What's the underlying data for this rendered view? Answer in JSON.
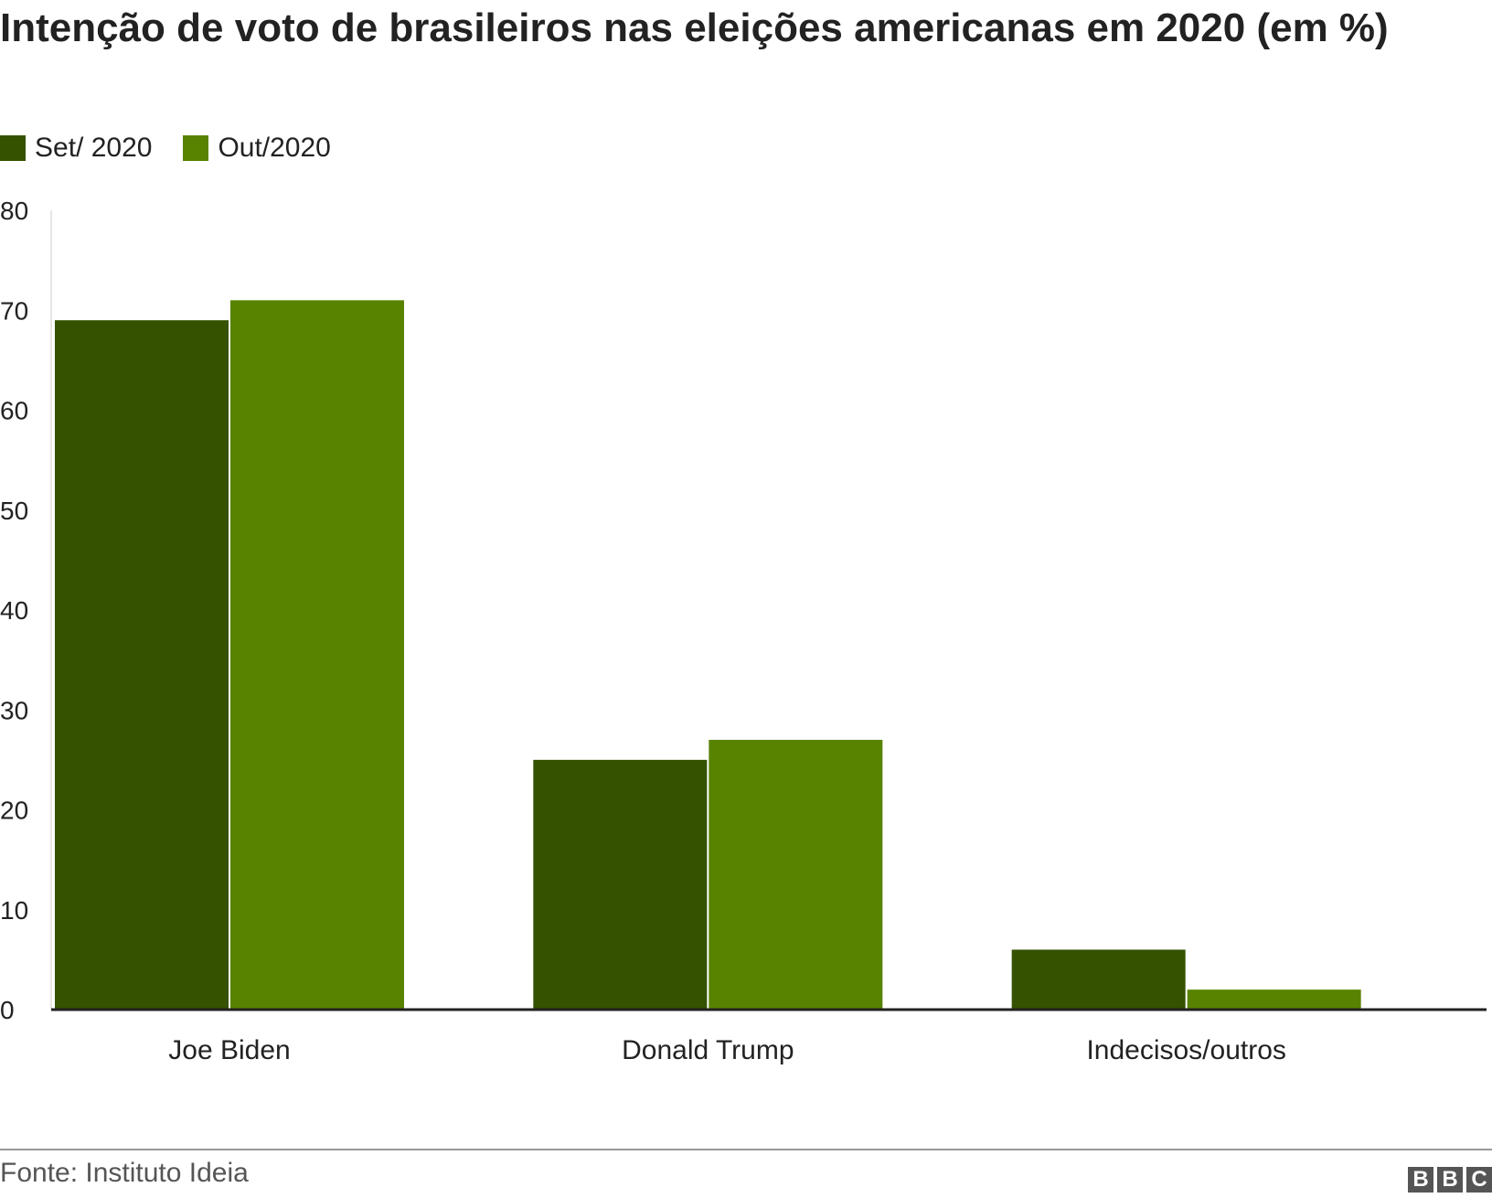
{
  "chart_data": {
    "type": "bar",
    "title": "Intenção de voto de brasileiros nas eleições americanas em 2020 (em %)",
    "categories": [
      "Joe Biden",
      "Donald Trump",
      "Indecisos/outros"
    ],
    "series": [
      {
        "name": "Set/ 2020",
        "color": "#345200",
        "values": [
          69,
          25,
          6
        ]
      },
      {
        "name": "Out/2020",
        "color": "#588300",
        "values": [
          71,
          27,
          2
        ]
      }
    ],
    "ylim": [
      0,
      80
    ],
    "yticks": [
      "0",
      "10",
      "20",
      "30",
      "40",
      "50",
      "60",
      "70",
      "80"
    ],
    "xlabel": "",
    "ylabel": "",
    "legend_position": "top-left"
  },
  "footer": {
    "source": "Fonte: Instituto Ideia",
    "logo_letters": [
      "B",
      "B",
      "C"
    ]
  }
}
